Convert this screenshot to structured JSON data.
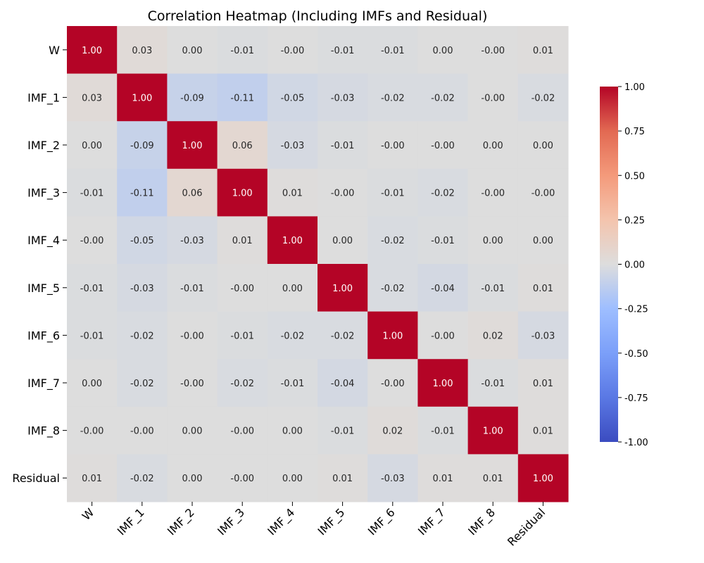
{
  "chart_data": {
    "type": "heatmap",
    "title": "Correlation Heatmap (Including IMFs and Residual)",
    "labels": [
      "W",
      "IMF_1",
      "IMF_2",
      "IMF_3",
      "IMF_4",
      "IMF_5",
      "IMF_6",
      "IMF_7",
      "IMF_8",
      "Residual"
    ],
    "matrix": [
      [
        1.0,
        0.03,
        0.0,
        -0.01,
        -0.0,
        -0.01,
        -0.01,
        0.0,
        -0.0,
        0.01
      ],
      [
        0.03,
        1.0,
        -0.09,
        -0.11,
        -0.05,
        -0.03,
        -0.02,
        -0.02,
        -0.0,
        -0.02
      ],
      [
        0.0,
        -0.09,
        1.0,
        0.06,
        -0.03,
        -0.01,
        -0.0,
        -0.0,
        0.0,
        0.0
      ],
      [
        -0.01,
        -0.11,
        0.06,
        1.0,
        0.01,
        -0.0,
        -0.01,
        -0.02,
        -0.0,
        -0.0
      ],
      [
        -0.0,
        -0.05,
        -0.03,
        0.01,
        1.0,
        0.0,
        -0.02,
        -0.01,
        0.0,
        0.0
      ],
      [
        -0.01,
        -0.03,
        -0.01,
        -0.0,
        0.0,
        1.0,
        -0.02,
        -0.04,
        -0.01,
        0.01
      ],
      [
        -0.01,
        -0.02,
        -0.0,
        -0.01,
        -0.02,
        -0.02,
        1.0,
        -0.0,
        0.02,
        -0.03
      ],
      [
        0.0,
        -0.02,
        -0.0,
        -0.02,
        -0.01,
        -0.04,
        -0.0,
        1.0,
        -0.01,
        0.01
      ],
      [
        -0.0,
        -0.0,
        0.0,
        -0.0,
        0.0,
        -0.01,
        0.02,
        -0.01,
        1.0,
        0.01
      ],
      [
        0.01,
        -0.02,
        0.0,
        -0.0,
        0.0,
        0.01,
        -0.03,
        0.01,
        0.01,
        1.0
      ]
    ],
    "annotations": [
      [
        "1.00",
        "0.03",
        "0.00",
        "-0.01",
        "-0.00",
        "-0.01",
        "-0.01",
        "0.00",
        "-0.00",
        "0.01"
      ],
      [
        "0.03",
        "1.00",
        "-0.09",
        "-0.11",
        "-0.05",
        "-0.03",
        "-0.02",
        "-0.02",
        "-0.00",
        "-0.02"
      ],
      [
        "0.00",
        "-0.09",
        "1.00",
        "0.06",
        "-0.03",
        "-0.01",
        "-0.00",
        "-0.00",
        "0.00",
        "0.00"
      ],
      [
        "-0.01",
        "-0.11",
        "0.06",
        "1.00",
        "0.01",
        "-0.00",
        "-0.01",
        "-0.02",
        "-0.00",
        "-0.00"
      ],
      [
        "-0.00",
        "-0.05",
        "-0.03",
        "0.01",
        "1.00",
        "0.00",
        "-0.02",
        "-0.01",
        "0.00",
        "0.00"
      ],
      [
        "-0.01",
        "-0.03",
        "-0.01",
        "-0.00",
        "0.00",
        "1.00",
        "-0.02",
        "-0.04",
        "-0.01",
        "0.01"
      ],
      [
        "-0.01",
        "-0.02",
        "-0.00",
        "-0.01",
        "-0.02",
        "-0.02",
        "1.00",
        "-0.00",
        "0.02",
        "-0.03"
      ],
      [
        "0.00",
        "-0.02",
        "-0.00",
        "-0.02",
        "-0.01",
        "-0.04",
        "-0.00",
        "1.00",
        "-0.01",
        "0.01"
      ],
      [
        "-0.00",
        "-0.00",
        "0.00",
        "-0.00",
        "0.00",
        "-0.01",
        "0.02",
        "-0.01",
        "1.00",
        "0.01"
      ],
      [
        "0.01",
        "-0.02",
        "0.00",
        "-0.00",
        "0.00",
        "0.01",
        "-0.03",
        "0.01",
        "0.01",
        "1.00"
      ]
    ],
    "colormap": "coolwarm",
    "vmin": -1.0,
    "vmax": 1.0,
    "colorbar_ticks": [
      "1.00",
      "0.75",
      "0.50",
      "0.25",
      "0.00",
      "-0.25",
      "-0.50",
      "-0.75",
      "-1.00"
    ],
    "colorbar_tick_values": [
      1.0,
      0.75,
      0.5,
      0.25,
      0.0,
      -0.25,
      -0.5,
      -0.75,
      -1.0
    ]
  }
}
